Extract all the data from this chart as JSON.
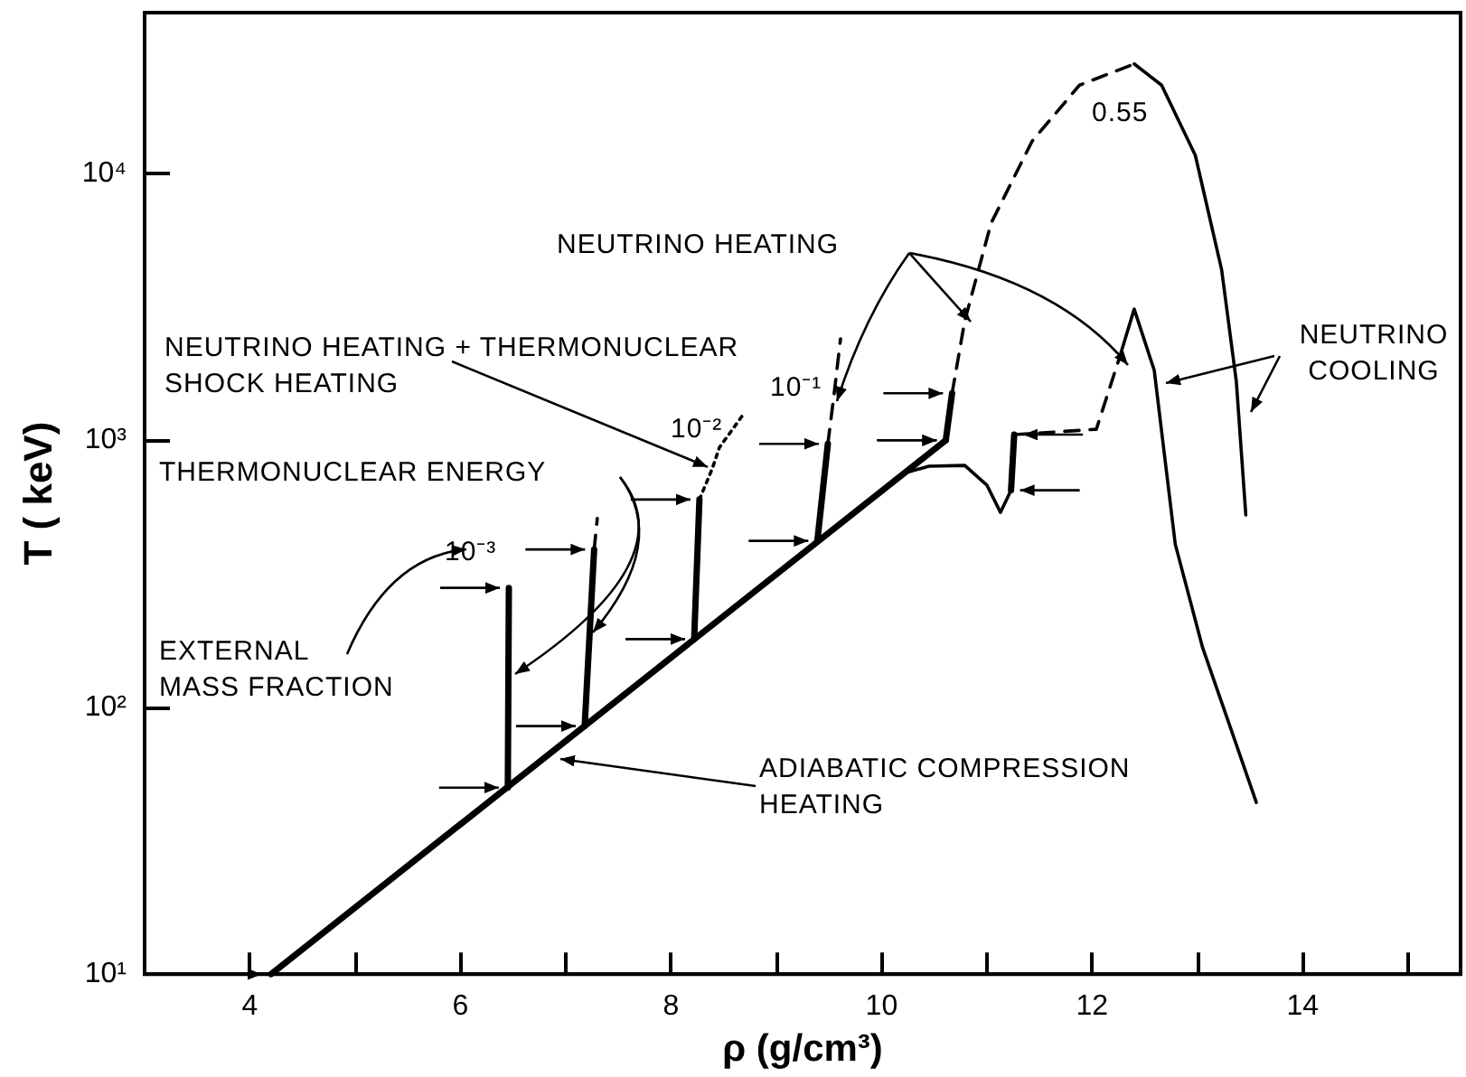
{
  "chart_data": {
    "type": "line",
    "xlabel": "ρ (g/cm³)",
    "ylabel": "T ( keV)",
    "log": "y",
    "marker": "none",
    "xlim": [
      3,
      15.5
    ],
    "ylim": [
      10,
      40000
    ],
    "xticks": [
      4,
      {
        "value": 5,
        "label": null
      },
      6,
      {
        "value": 7,
        "label": null
      },
      8,
      {
        "value": 9,
        "label": null
      },
      10,
      {
        "value": 11,
        "label": null
      },
      12,
      {
        "value": 13,
        "label": null
      },
      14,
      {
        "value": 15,
        "label": null
      }
    ],
    "yticks": [
      {
        "value": 10,
        "label": "10¹"
      },
      {
        "value": 100,
        "label": "10²"
      },
      {
        "value": 1000,
        "label": "10³"
      },
      {
        "value": 10000,
        "label": "10⁴"
      }
    ],
    "annotations": [
      "NEUTRINO HEATING",
      {
        "text": "NEUTRINO HEATING + THERMONUCLEAR\nSHOCK HEATING",
        "x": 8.4,
        "y": 770
      },
      "THERMONUCLEAR ENERGY",
      "EXTERNAL\nMASS FRACTION",
      "ADIABATIC COMPRESSION\nHEATING",
      "NEUTRINO\nCOOLING",
      "0.55",
      "10⁻¹",
      "10⁻²",
      "10⁻³"
    ],
    "series": [
      {
        "color": "#000000",
        "line_style": "solid",
        "x": [
          4.2,
          10.61
        ],
        "values": [
          10,
          1000
        ]
      },
      {
        "color": "#000000",
        "line_style": "solid",
        "x": [
          10.2,
          10.45,
          10.79,
          11.0,
          11.13,
          11.23
        ],
        "values": [
          750,
          800,
          805,
          680,
          537,
          650
        ]
      },
      {
        "color": "#000000",
        "line_style": "solid",
        "x": [
          11.23,
          11.26
        ],
        "values": [
          650,
          1050
        ]
      },
      {
        "color": "#000000",
        "line_style": "dashed",
        "x": [
          11.26,
          12.04,
          12.26
        ],
        "values": [
          1050,
          1100,
          2040
        ]
      },
      {
        "color": "#000000",
        "line_style": "solid",
        "x": [
          12.26,
          12.4,
          12.59,
          12.79,
          13.05,
          13.3,
          13.56
        ],
        "values": [
          2040,
          3100,
          1830,
          408,
          167,
          87,
          44
        ]
      },
      {
        "color": "#000000",
        "line_style": "solid",
        "x": [
          6.45,
          6.46
        ],
        "values": [
          50,
          280
        ]
      },
      {
        "color": "#000000",
        "line_style": "solid",
        "x": [
          7.18,
          7.27
        ],
        "values": [
          85,
          390
        ]
      },
      {
        "color": "#000000",
        "line_style": "dashed",
        "x": [
          7.27,
          7.3
        ],
        "values": [
          390,
          510
        ]
      },
      {
        "color": "#000000",
        "line_style": "solid",
        "x": [
          8.22,
          8.27
        ],
        "values": [
          180,
          600
        ]
      },
      {
        "color": "#000000",
        "line_style": "dotted",
        "x": [
          8.27,
          8.39,
          8.46,
          8.68
        ],
        "values": [
          600,
          780,
          940,
          1240
        ]
      },
      {
        "color": "#000000",
        "line_style": "solid",
        "x": [
          9.39,
          9.49
        ],
        "values": [
          420,
          970
        ]
      },
      {
        "color": "#000000",
        "line_style": "dashed",
        "x": [
          9.49,
          9.55,
          9.61
        ],
        "values": [
          970,
          1500,
          2400
        ]
      },
      {
        "color": "#000000",
        "line_style": "solid",
        "x": [
          10.61,
          10.67
        ],
        "values": [
          1000,
          1500
        ]
      },
      {
        "color": "#000000",
        "line_style": "dashed",
        "x": [
          10.67,
          10.79,
          11.04,
          11.43,
          11.88,
          12.4
        ],
        "values": [
          1500,
          2800,
          6500,
          13200,
          21400,
          25700
        ]
      },
      {
        "color": "#000000",
        "line_style": "solid",
        "x": [
          12.4,
          12.66,
          12.98,
          13.23,
          13.37,
          13.46
        ],
        "values": [
          25700,
          21400,
          11700,
          4360,
          1660,
          525
        ]
      }
    ]
  }
}
